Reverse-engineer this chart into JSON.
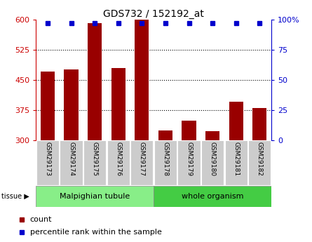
{
  "title": "GDS732 / 152192_at",
  "samples": [
    "GSM29173",
    "GSM29174",
    "GSM29175",
    "GSM29176",
    "GSM29177",
    "GSM29178",
    "GSM29179",
    "GSM29180",
    "GSM29181",
    "GSM29182"
  ],
  "counts": [
    470,
    475,
    590,
    480,
    600,
    325,
    348,
    322,
    395,
    380
  ],
  "percentiles": [
    97,
    97,
    97,
    97,
    97,
    97,
    97,
    97,
    97,
    97
  ],
  "ylim_left": [
    300,
    600
  ],
  "ylim_right": [
    0,
    100
  ],
  "yticks_left": [
    300,
    375,
    450,
    525,
    600
  ],
  "yticks_right": [
    0,
    25,
    50,
    75,
    100
  ],
  "bar_color": "#990000",
  "dot_color": "#0000cc",
  "tissue_groups": [
    {
      "label": "Malpighian tubule",
      "start": 0,
      "end": 5,
      "color": "#88ee88"
    },
    {
      "label": "whole organism",
      "start": 5,
      "end": 10,
      "color": "#44cc44"
    }
  ],
  "tick_bg_color": "#cccccc",
  "legend_count_color": "#990000",
  "legend_pct_color": "#0000cc",
  "grid_color": "#000000",
  "left_axis_color": "#cc0000",
  "right_axis_color": "#0000cc"
}
